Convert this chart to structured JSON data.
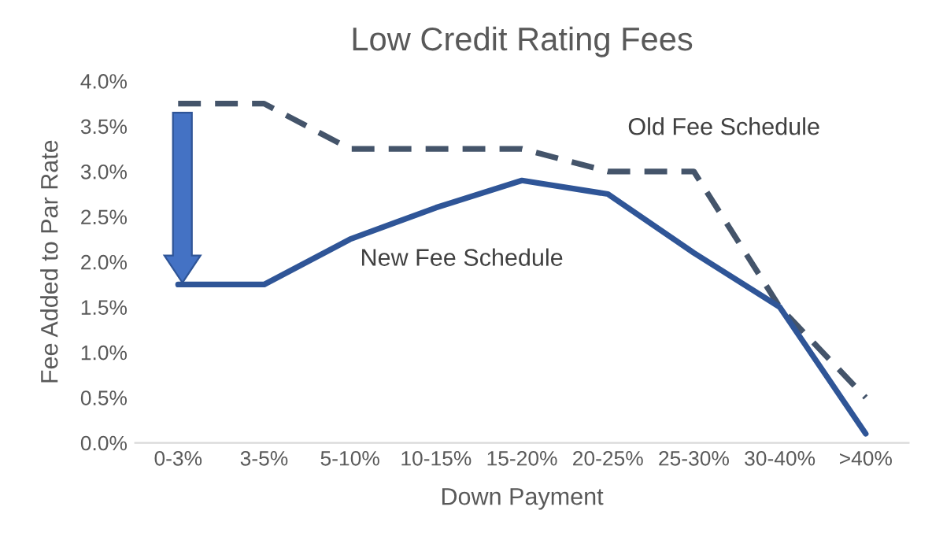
{
  "chart_data": {
    "type": "line",
    "title": "Low Credit Rating Fees",
    "xlabel": "Down Payment",
    "ylabel": "Fee Added to Par Rate",
    "categories": [
      "0-3%",
      "3-5%",
      "5-10%",
      "10-15%",
      "15-20%",
      "20-25%",
      "25-30%",
      "30-40%",
      ">40%"
    ],
    "series": [
      {
        "name": "Old Fee Schedule",
        "color": "#44546a",
        "line_style": "dashed",
        "values": [
          3.75,
          3.75,
          3.25,
          3.25,
          3.25,
          3.0,
          3.0,
          1.5,
          0.5
        ]
      },
      {
        "name": "New Fee Schedule",
        "color": "#2f5597",
        "line_style": "solid",
        "values": [
          1.75,
          1.75,
          2.25,
          2.6,
          2.9,
          2.75,
          2.1,
          1.5,
          0.1
        ]
      }
    ],
    "ylim": [
      0,
      4.0
    ],
    "yticks": [
      {
        "value": 0,
        "label": "0.0%"
      },
      {
        "value": 0.5,
        "label": "0.5%"
      },
      {
        "value": 1.0,
        "label": "1.0%"
      },
      {
        "value": 1.5,
        "label": "1.5%"
      },
      {
        "value": 2.0,
        "label": "2.0%"
      },
      {
        "value": 2.5,
        "label": "2.5%"
      },
      {
        "value": 3.0,
        "label": "3.0%"
      },
      {
        "value": 3.5,
        "label": "3.5%"
      },
      {
        "value": 4.0,
        "label": "4.0%"
      }
    ],
    "grid": false,
    "legend": false,
    "marker": "none"
  }
}
